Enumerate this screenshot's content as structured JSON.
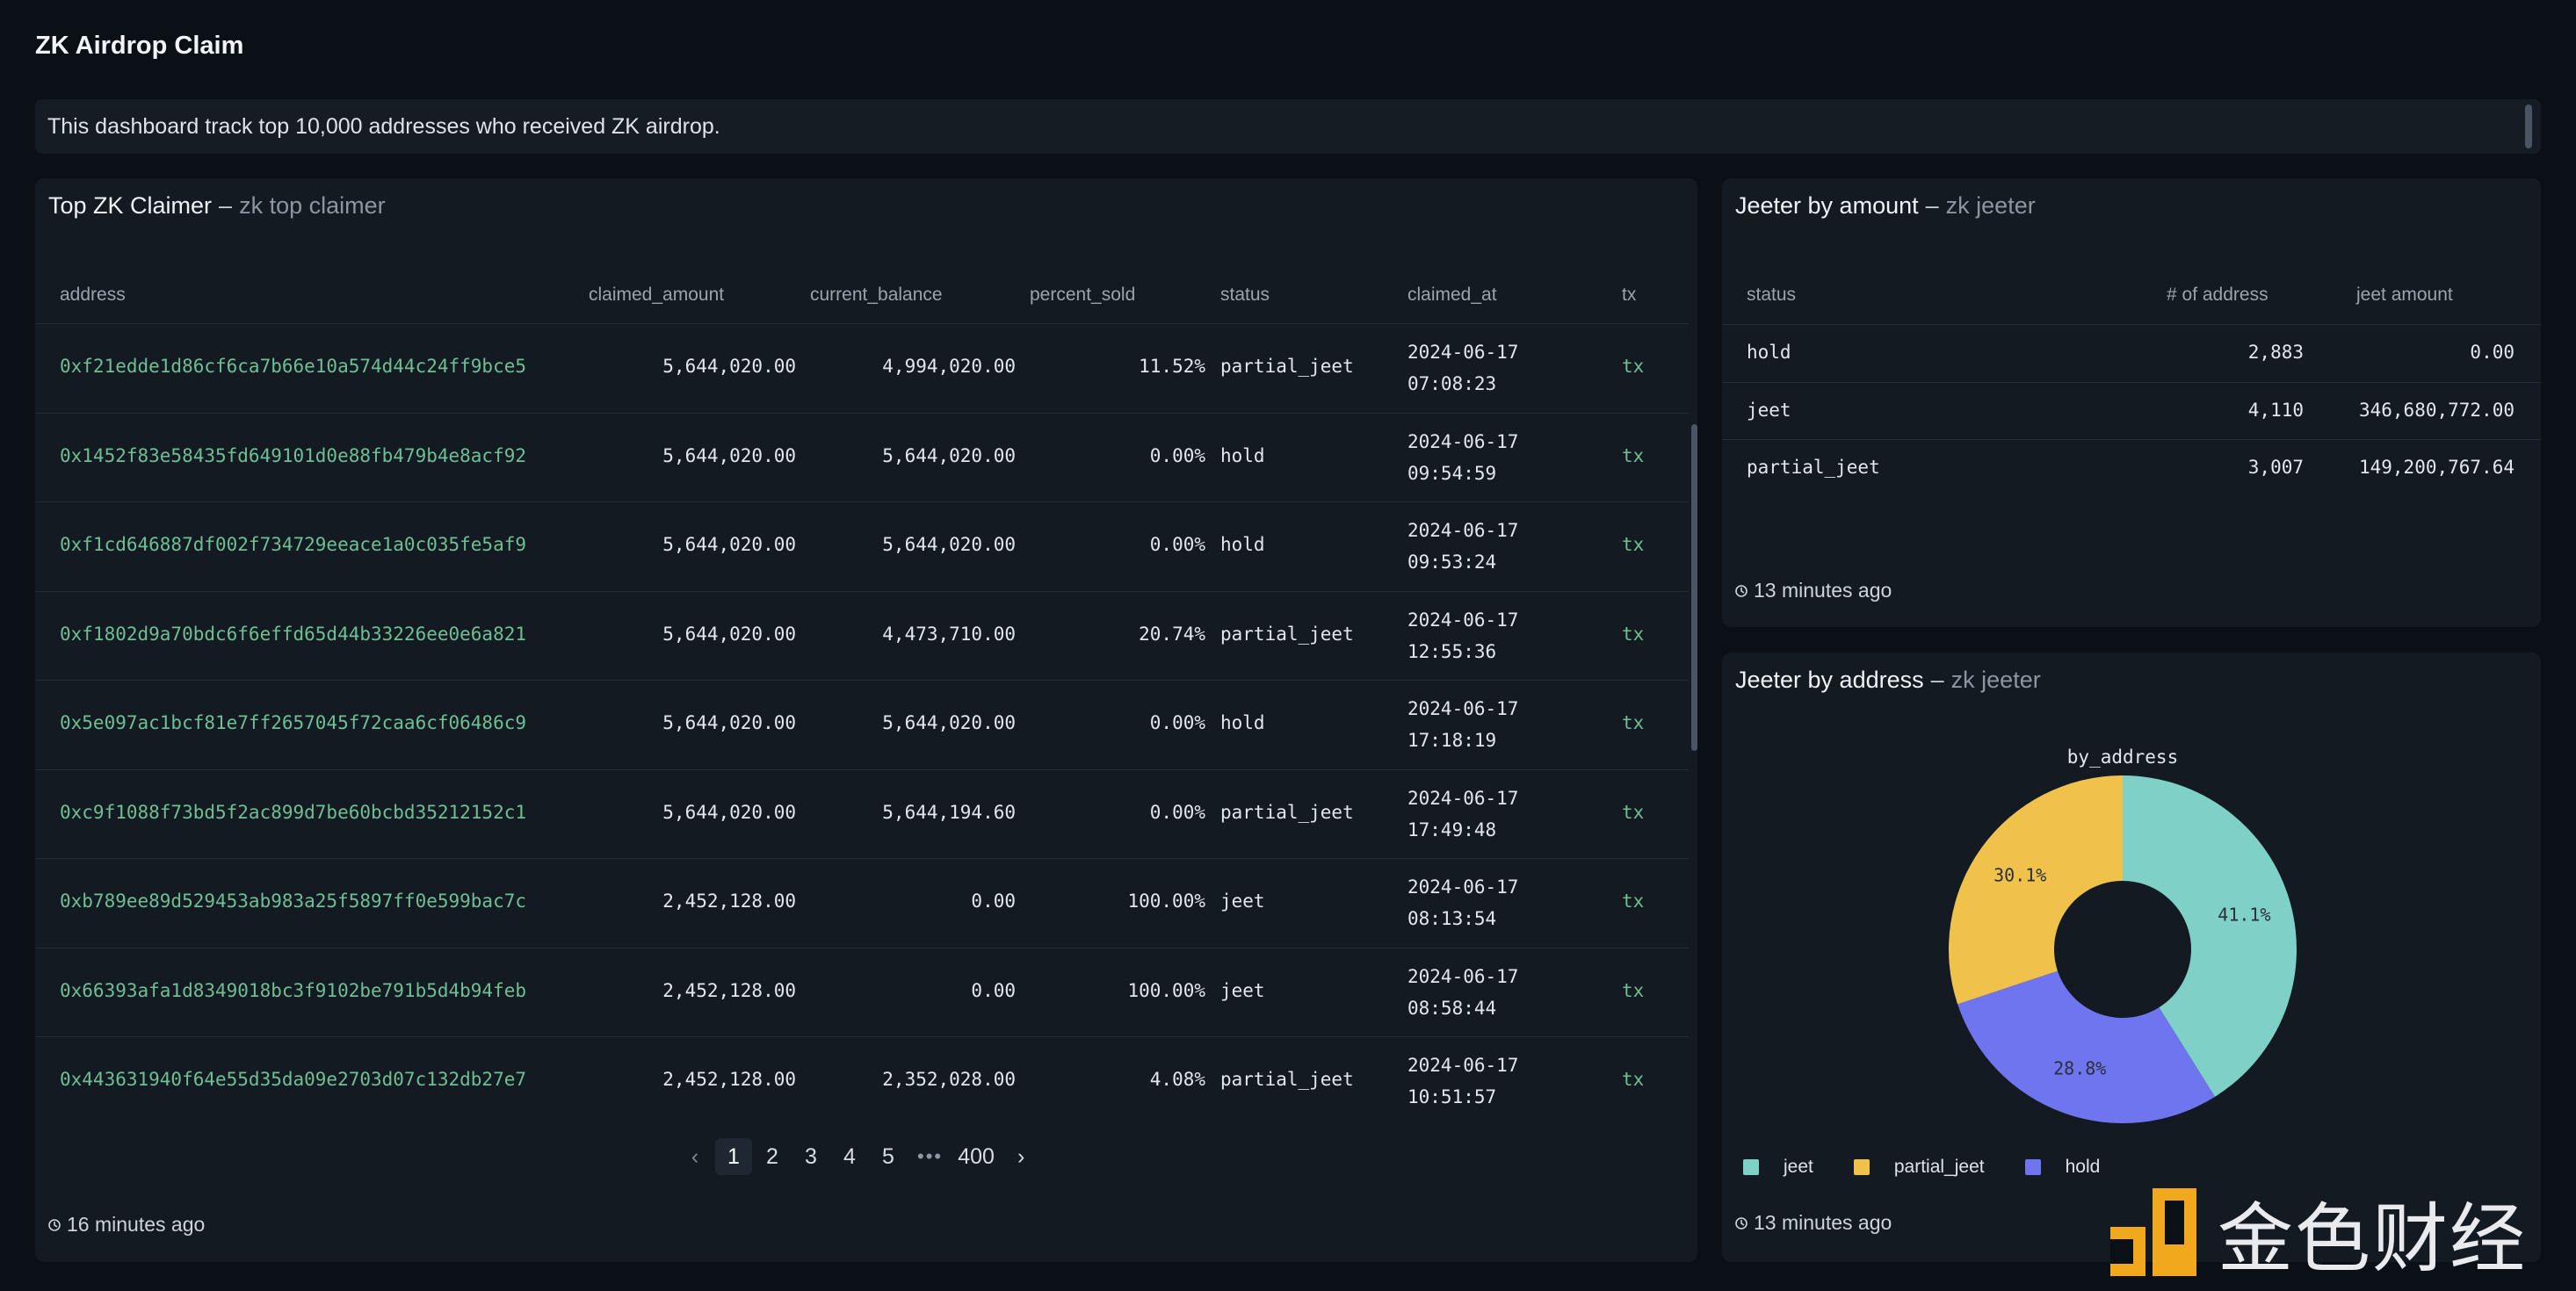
{
  "page": {
    "title": "ZK Airdrop Claim",
    "description": "This dashboard track top 10,000 addresses who received ZK airdrop."
  },
  "top_claimer": {
    "title": "Top ZK Claimer",
    "separator": "–",
    "subtitle": "zk top claimer",
    "columns": [
      "address",
      "claimed_amount",
      "current_balance",
      "percent_sold",
      "status",
      "claimed_at",
      "tx"
    ],
    "rows": [
      {
        "address": "0xf21edde1d86cf6ca7b66e10a574d44c24ff9bce5",
        "claimed_amount": "5,644,020.00",
        "current_balance": "4,994,020.00",
        "percent_sold": "11.52%",
        "status": "partial_jeet",
        "date": "2024-06-17",
        "time": "07:08:23",
        "tx": "tx"
      },
      {
        "address": "0x1452f83e58435fd649101d0e88fb479b4e8acf92",
        "claimed_amount": "5,644,020.00",
        "current_balance": "5,644,020.00",
        "percent_sold": "0.00%",
        "status": "hold",
        "date": "2024-06-17",
        "time": "09:54:59",
        "tx": "tx"
      },
      {
        "address": "0xf1cd646887df002f734729eeace1a0c035fe5af9",
        "claimed_amount": "5,644,020.00",
        "current_balance": "5,644,020.00",
        "percent_sold": "0.00%",
        "status": "hold",
        "date": "2024-06-17",
        "time": "09:53:24",
        "tx": "tx"
      },
      {
        "address": "0xf1802d9a70bdc6f6effd65d44b33226ee0e6a821",
        "claimed_amount": "5,644,020.00",
        "current_balance": "4,473,710.00",
        "percent_sold": "20.74%",
        "status": "partial_jeet",
        "date": "2024-06-17",
        "time": "12:55:36",
        "tx": "tx"
      },
      {
        "address": "0x5e097ac1bcf81e7ff2657045f72caa6cf06486c9",
        "claimed_amount": "5,644,020.00",
        "current_balance": "5,644,020.00",
        "percent_sold": "0.00%",
        "status": "hold",
        "date": "2024-06-17",
        "time": "17:18:19",
        "tx": "tx"
      },
      {
        "address": "0xc9f1088f73bd5f2ac899d7be60bcbd35212152c1",
        "claimed_amount": "5,644,020.00",
        "current_balance": "5,644,194.60",
        "percent_sold": "0.00%",
        "status": "partial_jeet",
        "date": "2024-06-17",
        "time": "17:49:48",
        "tx": "tx"
      },
      {
        "address": "0xb789ee89d529453ab983a25f5897ff0e599bac7c",
        "claimed_amount": "2,452,128.00",
        "current_balance": "0.00",
        "percent_sold": "100.00%",
        "status": "jeet",
        "date": "2024-06-17",
        "time": "08:13:54",
        "tx": "tx"
      },
      {
        "address": "0x66393afa1d8349018bc3f9102be791b5d4b94feb",
        "claimed_amount": "2,452,128.00",
        "current_balance": "0.00",
        "percent_sold": "100.00%",
        "status": "jeet",
        "date": "2024-06-17",
        "time": "08:58:44",
        "tx": "tx"
      },
      {
        "address": "0x443631940f64e55d35da09e2703d07c132db27e7",
        "claimed_amount": "2,452,128.00",
        "current_balance": "2,352,028.00",
        "percent_sold": "4.08%",
        "status": "partial_jeet",
        "date": "2024-06-17",
        "time": "10:51:57",
        "tx": "tx"
      }
    ],
    "pagination": {
      "prev": "‹",
      "pages": [
        "1",
        "2",
        "3",
        "4",
        "5"
      ],
      "ellipsis": "•••",
      "last": "400",
      "next": "›",
      "current": "1"
    },
    "updated": "16 minutes ago"
  },
  "jeeter_amount": {
    "title": "Jeeter by amount",
    "separator": "–",
    "subtitle": "zk jeeter",
    "columns": [
      "status",
      "# of address",
      "jeet amount"
    ],
    "rows": [
      {
        "status": "hold",
        "count": "2,883",
        "amount": "0.00"
      },
      {
        "status": "jeet",
        "count": "4,110",
        "amount": "346,680,772.00"
      },
      {
        "status": "partial_jeet",
        "count": "3,007",
        "amount": "149,200,767.64"
      }
    ],
    "updated": "13 minutes ago"
  },
  "jeeter_address": {
    "title": "Jeeter by address",
    "separator": "–",
    "subtitle": "zk jeeter",
    "updated": "13 minutes ago"
  },
  "chart_data": {
    "type": "pie",
    "title": "by_address",
    "categories": [
      "jeet",
      "hold",
      "partial_jeet"
    ],
    "values": [
      41.1,
      28.8,
      30.1
    ],
    "labels": [
      "41.1%",
      "28.8%",
      "30.1%"
    ],
    "colors": [
      "#7fd0c6",
      "#6f75ef",
      "#f0c24b"
    ],
    "legend": [
      {
        "name": "jeet",
        "color": "#7fd0c6"
      },
      {
        "name": "partial_jeet",
        "color": "#f0c24b"
      },
      {
        "name": "hold",
        "color": "#6f75ef"
      }
    ],
    "legend_position": "bottom-left",
    "donut": true
  },
  "watermark": {
    "text": "金色财经",
    "logo": "jinse-logo-icon"
  }
}
